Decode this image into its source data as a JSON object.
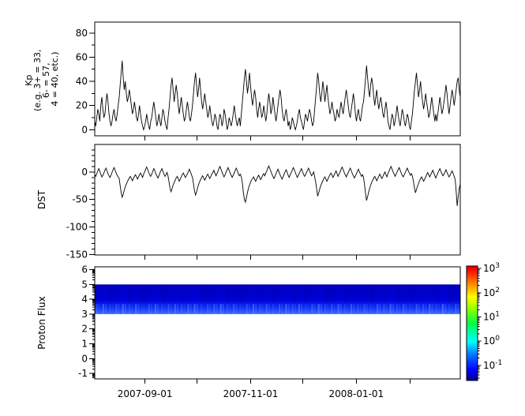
{
  "figure": {
    "background": "#ffffff",
    "axis_color": "#000000",
    "series_color": "#000000"
  },
  "panels": {
    "kp": {
      "ylabel_lines": [
        "Kp",
        "(e.g. 3+ = 33,",
        "6- = 57,",
        "4 = 40, etc.)"
      ],
      "yticks": [
        0,
        20,
        40,
        60,
        80
      ]
    },
    "dst": {
      "ylabel": "DST",
      "yticks": [
        0,
        -50,
        -100,
        -150
      ]
    },
    "flux": {
      "ylabel": "Proton Flux",
      "yticks": [
        -1,
        0,
        1,
        2,
        3,
        4,
        5,
        6
      ]
    }
  },
  "xaxis": {
    "ticks": [
      {
        "date": "2007-09-01",
        "label": "2007-09-01"
      },
      {
        "date": "2007-10-01",
        "label": ""
      },
      {
        "date": "2007-11-01",
        "label": "2007-11-01"
      },
      {
        "date": "2007-12-01",
        "label": ""
      },
      {
        "date": "2008-01-01",
        "label": "2008-01-01"
      },
      {
        "date": "2008-02-01",
        "label": ""
      }
    ]
  },
  "colorbar": {
    "scale": "log",
    "tick_exponents": [
      3,
      2,
      1,
      0,
      -1
    ],
    "colormap": "jet",
    "stops": [
      {
        "t": 0.0,
        "c": "#000088"
      },
      {
        "t": 0.09,
        "c": "#0000ff"
      },
      {
        "t": 0.22,
        "c": "#0070ff"
      },
      {
        "t": 0.34,
        "c": "#00ffff"
      },
      {
        "t": 0.5,
        "c": "#00ff44"
      },
      {
        "t": 0.62,
        "c": "#8cff00"
      },
      {
        "t": 0.73,
        "c": "#ffff00"
      },
      {
        "t": 0.86,
        "c": "#ff7700"
      },
      {
        "t": 0.97,
        "c": "#ff0000"
      },
      {
        "t": 1.0,
        "c": "#e20000"
      }
    ]
  },
  "chart_data": [
    {
      "id": "kp",
      "type": "line",
      "ylabel": "Kp (e.g. 3+ = 33, 6- = 57, 4 = 40, etc.)",
      "ylim": [
        -5,
        89
      ],
      "yticks": [
        0,
        20,
        40,
        60,
        80
      ],
      "yticks_minor": [
        10,
        30,
        50,
        70
      ],
      "x_start": "2007-08-03",
      "x_end": "2008-03-01",
      "line_color": "#000000",
      "values": [
        7,
        3,
        10,
        17,
        13,
        7,
        20,
        27,
        17,
        10,
        13,
        23,
        30,
        23,
        13,
        7,
        3,
        7,
        13,
        17,
        10,
        7,
        13,
        20,
        27,
        37,
        47,
        57,
        43,
        33,
        40,
        30,
        23,
        27,
        33,
        27,
        20,
        13,
        17,
        23,
        17,
        10,
        7,
        13,
        20,
        13,
        7,
        3,
        0,
        3,
        7,
        13,
        7,
        3,
        0,
        7,
        10,
        17,
        23,
        17,
        10,
        3,
        7,
        13,
        7,
        3,
        10,
        17,
        13,
        7,
        3,
        0,
        10,
        17,
        27,
        37,
        43,
        33,
        23,
        30,
        37,
        30,
        20,
        13,
        20,
        27,
        20,
        13,
        7,
        10,
        17,
        23,
        17,
        10,
        7,
        13,
        20,
        30,
        40,
        47,
        37,
        27,
        33,
        43,
        33,
        23,
        17,
        23,
        30,
        23,
        17,
        10,
        13,
        20,
        13,
        7,
        3,
        7,
        13,
        10,
        3,
        0,
        7,
        13,
        10,
        3,
        7,
        17,
        13,
        7,
        0,
        3,
        10,
        7,
        3,
        7,
        13,
        20,
        13,
        7,
        3,
        7,
        10,
        3,
        13,
        23,
        33,
        43,
        50,
        40,
        30,
        37,
        47,
        37,
        27,
        20,
        27,
        33,
        27,
        17,
        10,
        17,
        23,
        17,
        10,
        13,
        20,
        13,
        7,
        13,
        23,
        30,
        23,
        13,
        17,
        27,
        20,
        13,
        7,
        13,
        20,
        27,
        33,
        27,
        17,
        10,
        7,
        13,
        17,
        10,
        3,
        7,
        0,
        3,
        10,
        7,
        3,
        0,
        3,
        7,
        13,
        17,
        10,
        7,
        3,
        0,
        7,
        13,
        10,
        7,
        13,
        17,
        13,
        7,
        3,
        7,
        17,
        27,
        37,
        47,
        40,
        30,
        23,
        30,
        40,
        33,
        23,
        30,
        37,
        27,
        20,
        13,
        17,
        23,
        17,
        13,
        7,
        10,
        17,
        13,
        10,
        17,
        23,
        17,
        13,
        20,
        27,
        33,
        27,
        20,
        13,
        10,
        17,
        23,
        30,
        23,
        13,
        7,
        13,
        17,
        10,
        7,
        13,
        20,
        23,
        33,
        43,
        53,
        43,
        33,
        27,
        37,
        43,
        37,
        27,
        20,
        27,
        33,
        23,
        17,
        23,
        27,
        20,
        13,
        10,
        17,
        23,
        17,
        7,
        3,
        0,
        7,
        13,
        10,
        3,
        7,
        13,
        20,
        13,
        7,
        3,
        10,
        17,
        13,
        7,
        3,
        7,
        13,
        10,
        3,
        0,
        7,
        13,
        23,
        33,
        40,
        47,
        37,
        27,
        33,
        40,
        30,
        23,
        17,
        23,
        30,
        23,
        17,
        10,
        13,
        20,
        27,
        20,
        13,
        7,
        13,
        7,
        13,
        20,
        27,
        20,
        13,
        17,
        23,
        30,
        37,
        30,
        20,
        13,
        20,
        27,
        33,
        27,
        20,
        27,
        33,
        40,
        43,
        33,
        27
      ]
    },
    {
      "id": "dst",
      "type": "line",
      "ylabel": "DST",
      "ylim": [
        -151,
        50
      ],
      "yticks": [
        0,
        -50,
        -100,
        -150
      ],
      "minor_step": 10,
      "x_start": "2007-08-03",
      "x_end": "2008-03-01",
      "line_color": "#000000",
      "values": [
        -5,
        -8,
        -3,
        2,
        6,
        1,
        -4,
        -9,
        -6,
        -2,
        3,
        7,
        2,
        -3,
        -7,
        -10,
        -6,
        -1,
        4,
        8,
        3,
        -2,
        -6,
        -9,
        -12,
        -25,
        -38,
        -46,
        -40,
        -33,
        -27,
        -22,
        -18,
        -14,
        -11,
        -8,
        -12,
        -16,
        -12,
        -8,
        -5,
        -9,
        -13,
        -9,
        -5,
        -2,
        -6,
        -10,
        -4,
        0,
        5,
        9,
        4,
        -1,
        -5,
        -8,
        -4,
        1,
        6,
        2,
        -3,
        -7,
        -11,
        -7,
        -2,
        2,
        6,
        1,
        -4,
        -8,
        -5,
        -1,
        -8,
        -18,
        -30,
        -36,
        -30,
        -24,
        -19,
        -15,
        -11,
        -8,
        -12,
        -17,
        -13,
        -9,
        -5,
        -2,
        -6,
        -10,
        -7,
        -3,
        1,
        5,
        0,
        -5,
        -10,
        -22,
        -35,
        -42,
        -36,
        -29,
        -23,
        -18,
        -14,
        -10,
        -7,
        -11,
        -15,
        -11,
        -7,
        -4,
        -8,
        -12,
        -8,
        -4,
        -1,
        3,
        -2,
        -7,
        -3,
        1,
        6,
        10,
        5,
        0,
        -5,
        -9,
        -5,
        0,
        4,
        8,
        3,
        -2,
        -6,
        -10,
        -6,
        -2,
        3,
        7,
        2,
        -3,
        -7,
        -4,
        -9,
        -20,
        -38,
        -50,
        -55,
        -46,
        -37,
        -30,
        -24,
        -19,
        -15,
        -12,
        -9,
        -13,
        -17,
        -13,
        -9,
        -6,
        -10,
        -14,
        -10,
        -6,
        -3,
        -7,
        -2,
        2,
        7,
        11,
        6,
        1,
        -4,
        -8,
        -12,
        -8,
        -3,
        1,
        5,
        0,
        -5,
        -9,
        -13,
        -9,
        -4,
        0,
        4,
        -1,
        -6,
        -10,
        -5,
        -1,
        3,
        8,
        4,
        -1,
        -6,
        -10,
        -6,
        -2,
        2,
        6,
        1,
        -4,
        -8,
        -5,
        -1,
        3,
        7,
        2,
        -3,
        -7,
        -4,
        0,
        -9,
        -19,
        -32,
        -44,
        -38,
        -31,
        -25,
        -20,
        -16,
        -12,
        -9,
        -13,
        -17,
        -13,
        -9,
        -5,
        -2,
        -6,
        -10,
        -6,
        -2,
        2,
        -3,
        -8,
        -4,
        0,
        5,
        9,
        4,
        -1,
        -5,
        -9,
        -5,
        -1,
        3,
        7,
        2,
        -3,
        -7,
        -11,
        -7,
        -3,
        1,
        5,
        0,
        -4,
        -8,
        -5,
        -10,
        -24,
        -40,
        -52,
        -45,
        -37,
        -30,
        -24,
        -19,
        -15,
        -11,
        -8,
        -12,
        -16,
        -12,
        -8,
        -4,
        -8,
        -12,
        -8,
        -4,
        0,
        -5,
        -9,
        -3,
        1,
        6,
        10,
        5,
        0,
        -4,
        -8,
        -4,
        0,
        4,
        8,
        3,
        -2,
        -6,
        -9,
        -5,
        -1,
        3,
        7,
        2,
        -2,
        -6,
        -3,
        -8,
        -17,
        -29,
        -38,
        -32,
        -26,
        -21,
        -16,
        -12,
        -9,
        -13,
        -17,
        -13,
        -9,
        -5,
        -1,
        -5,
        -9,
        -5,
        -1,
        3,
        -2,
        -7,
        -11,
        -6,
        -2,
        2,
        6,
        1,
        -3,
        -7,
        -4,
        0,
        4,
        -1,
        -5,
        -9,
        -6,
        -2,
        2,
        -3,
        -8,
        -14,
        -35,
        -62,
        -45,
        -30,
        -22
      ]
    },
    {
      "id": "proton_flux",
      "type": "heatmap",
      "ylabel": "Proton Flux",
      "ylim": [
        -1.37,
        6.19
      ],
      "yticks": [
        -1,
        0,
        1,
        2,
        3,
        4,
        5,
        6
      ],
      "band": {
        "y_min": 3,
        "y_max": 5
      },
      "band_colors": {
        "top": "#0000c4",
        "mid": "#0000dc",
        "lower": "#0d2ff5",
        "bottom": "#3a6bff",
        "streak": "#6e9bff",
        "dark": "#000070"
      },
      "colorbar_range_exponents": [
        -1.62,
        3.1
      ],
      "stripes": [
        0.5,
        0.8,
        0.3,
        0.6,
        0.9,
        0.4,
        0.7,
        0.2,
        0.6,
        0.8,
        0.35,
        0.55,
        0.75,
        0.45,
        0.65,
        0.85,
        0.3,
        0.5,
        0.7,
        0.9,
        0.4,
        0.6,
        0.25,
        0.55,
        0.8,
        0.45,
        0.7,
        0.35,
        0.6,
        0.85,
        0.5,
        0.75,
        0.3,
        0.65,
        0.9,
        0.4,
        0.55,
        0.8,
        0.35,
        0.7,
        0.45,
        0.6,
        0.25,
        0.75,
        0.5,
        0.85,
        0.4,
        0.65,
        0.3,
        0.7,
        0.55,
        0.8,
        0.45,
        0.9,
        0.35,
        0.6
      ]
    }
  ]
}
